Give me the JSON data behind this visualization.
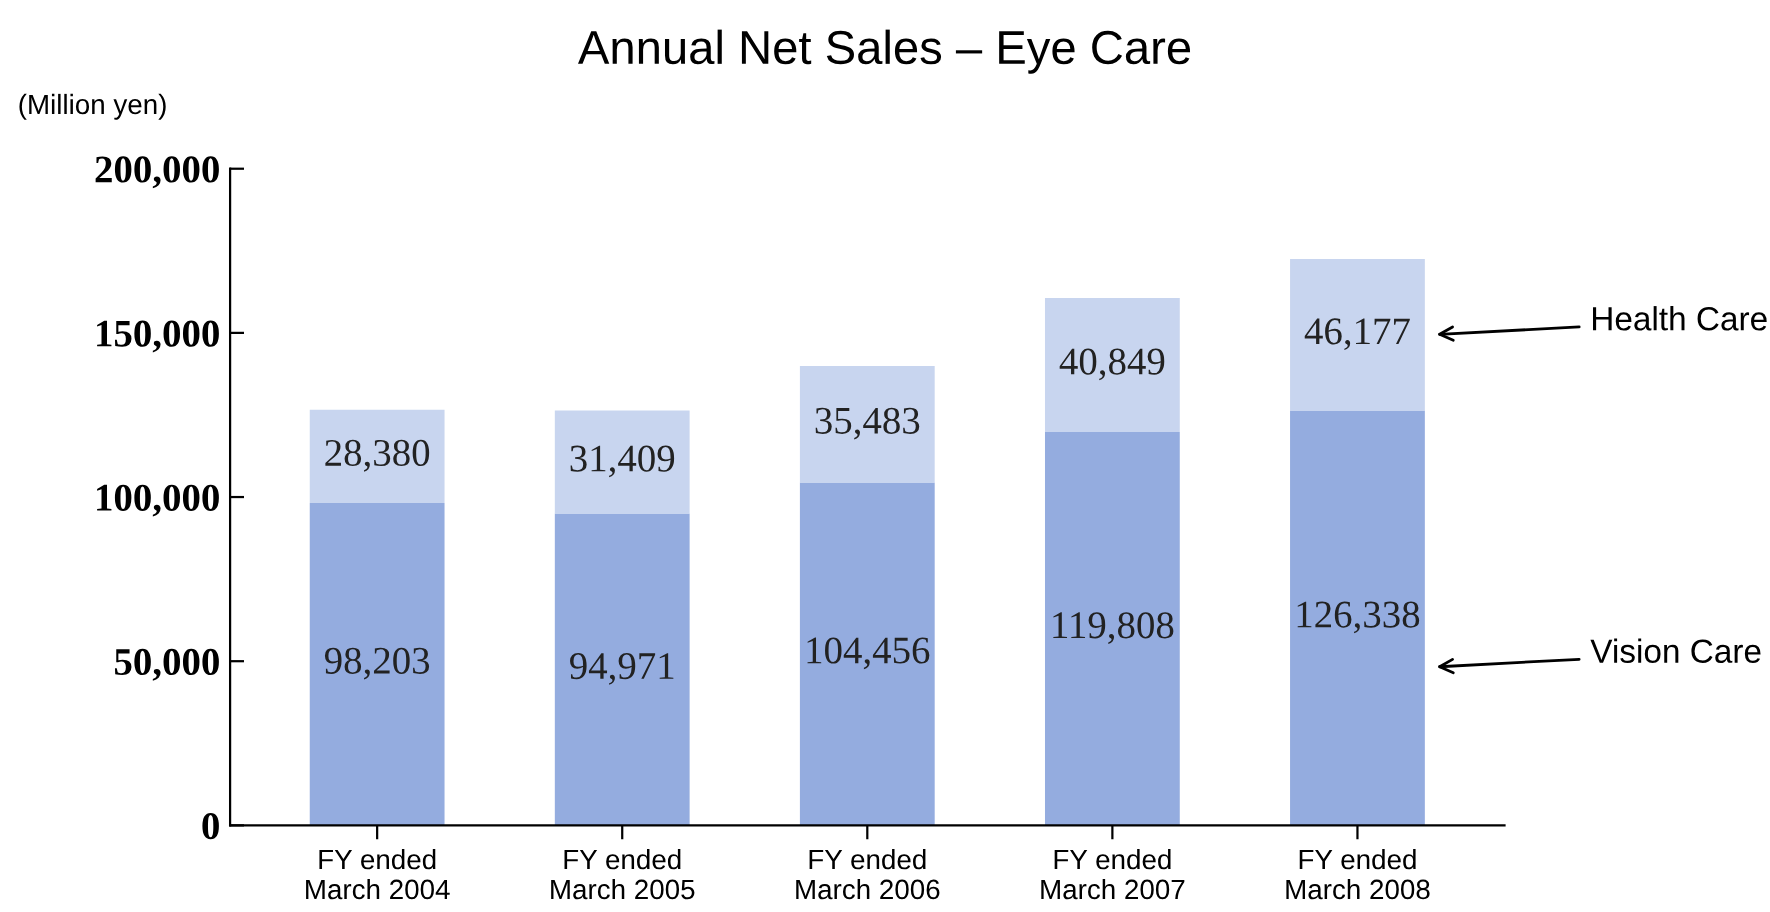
{
  "chart_data": {
    "type": "bar",
    "title": "Annual Net Sales – Eye Care",
    "ylabel": "(Million yen)",
    "categories": [
      "FY ended\nMarch 2004",
      "FY ended\nMarch 2005",
      "FY ended\nMarch 2006",
      "FY ended\nMarch 2007",
      "FY ended\nMarch 2008"
    ],
    "stacked": true,
    "series": [
      {
        "name": "Vision Care",
        "color": "#94acdf",
        "values": [
          98203,
          94971,
          104456,
          119808,
          126338
        ],
        "value_labels": [
          "98,203",
          "94,971",
          "104,456",
          "119,808",
          "126,338"
        ]
      },
      {
        "name": "Health Care",
        "color": "#c8d5ef",
        "values": [
          28380,
          31409,
          35483,
          40849,
          46177
        ],
        "value_labels": [
          "28,380",
          "31,409",
          "35,483",
          "40,849",
          "46,177"
        ]
      }
    ],
    "ylim": [
      0,
      200000
    ],
    "yticks": [
      0,
      {
        "value": 50000,
        "label": "50,000"
      },
      {
        "value": 100000,
        "label": "100,000"
      },
      {
        "value": 150000,
        "label": "150,000"
      },
      {
        "value": 200000,
        "label": "200,000"
      }
    ],
    "grid": false
  }
}
